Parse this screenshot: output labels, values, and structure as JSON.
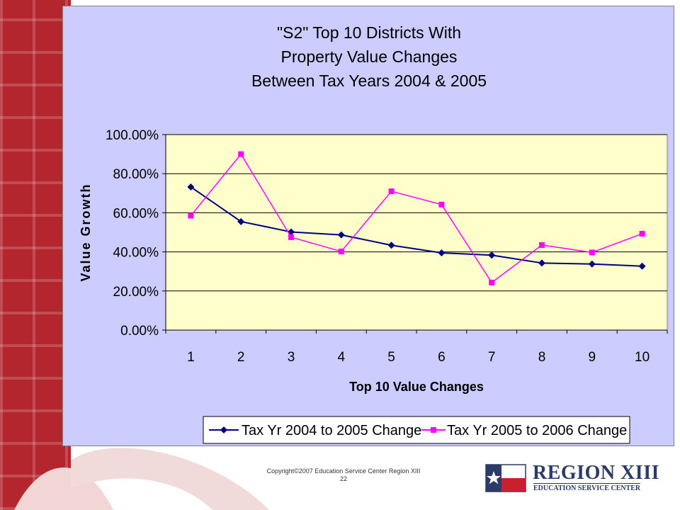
{
  "chart_data": {
    "type": "line",
    "title_lines": [
      "\"S2\" Top 10 Districts With",
      "Property Value Changes",
      "Between Tax Years 2004 & 2005"
    ],
    "xlabel": "Top 10 Value Changes",
    "ylabel": "Value Growth",
    "categories": [
      "1",
      "2",
      "3",
      "4",
      "5",
      "6",
      "7",
      "8",
      "9",
      "10"
    ],
    "yticks": [
      "0.00%",
      "20.00%",
      "40.00%",
      "60.00%",
      "80.00%",
      "100.00%"
    ],
    "ylim": [
      0,
      100
    ],
    "grid": true,
    "legend_position": "bottom",
    "series": [
      {
        "name": "Tax Yr 2004 to 2005 Change",
        "color": "#000080",
        "marker": "diamond",
        "values": [
          73.2,
          55.5,
          50.2,
          48.7,
          43.4,
          39.5,
          38.3,
          34.3,
          33.8,
          32.7
        ]
      },
      {
        "name": "Tax Yr 2005 to 2006 Change",
        "color": "#ff00ff",
        "marker": "square",
        "values": [
          58.5,
          90.0,
          47.5,
          40.2,
          71.0,
          64.2,
          24.3,
          43.5,
          39.7,
          49.3
        ]
      }
    ],
    "plot_bg": "#ffffcc",
    "panel_bg": "#ccccff"
  },
  "footer": {
    "copyright": "Copyright©2007 Education Service Center Region XIII",
    "page_number": "22"
  },
  "logo": {
    "title": "REGION XIII",
    "subtitle": "EDUCATION SERVICE CENTER"
  }
}
